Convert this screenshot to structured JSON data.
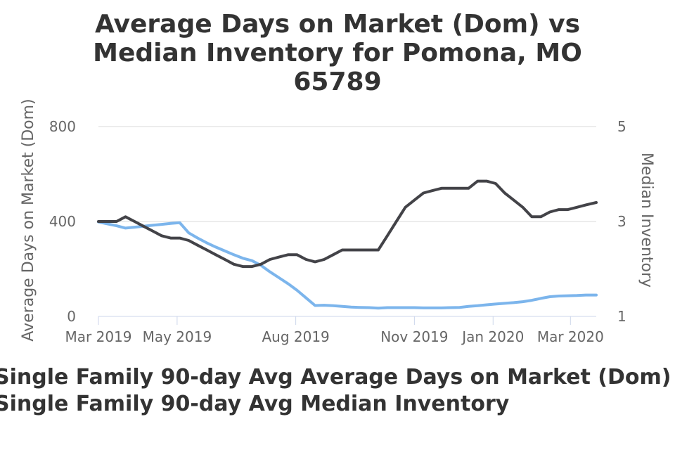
{
  "chart_data": {
    "type": "line",
    "title_lines": [
      "Average Days on Market (Dom) vs",
      "Median Inventory for Pomona, MO",
      "65789"
    ],
    "x_tick_labels": [
      "Mar 2019",
      "May 2019",
      "Aug 2019",
      "Nov 2019",
      "Jan 2020",
      "Mar 2020"
    ],
    "x_tick_dates": [
      "2019-03-01",
      "2019-05-01",
      "2019-08-01",
      "2019-11-01",
      "2020-01-01",
      "2020-03-01"
    ],
    "x_range": [
      "2019-03-01",
      "2020-03-21"
    ],
    "y_left": {
      "label": "Average Days on Market (Dom)",
      "min": 0,
      "max": 800,
      "ticks": [
        0,
        400,
        800
      ]
    },
    "y_right": {
      "label": "Median Inventory",
      "min": 1,
      "max": 5,
      "ticks": [
        1,
        3,
        5
      ]
    },
    "grid": true,
    "legend_position": "bottom",
    "series": [
      {
        "name": "Single Family 90-day Avg Average Days on Market (Dom)",
        "axis": "left",
        "color": "#7cb5ec",
        "points": [
          [
            "2019-03-01",
            398
          ],
          [
            "2019-03-08",
            390
          ],
          [
            "2019-03-15",
            382
          ],
          [
            "2019-03-22",
            372
          ],
          [
            "2019-03-29",
            376
          ],
          [
            "2019-04-05",
            380
          ],
          [
            "2019-04-12",
            384
          ],
          [
            "2019-04-19",
            388
          ],
          [
            "2019-04-26",
            392
          ],
          [
            "2019-05-03",
            395
          ],
          [
            "2019-05-10",
            352
          ],
          [
            "2019-05-17",
            330
          ],
          [
            "2019-05-24",
            310
          ],
          [
            "2019-05-31",
            292
          ],
          [
            "2019-06-07",
            276
          ],
          [
            "2019-06-14",
            260
          ],
          [
            "2019-06-21",
            245
          ],
          [
            "2019-06-28",
            235
          ],
          [
            "2019-07-05",
            215
          ],
          [
            "2019-07-12",
            188
          ],
          [
            "2019-07-19",
            163
          ],
          [
            "2019-07-26",
            138
          ],
          [
            "2019-08-02",
            110
          ],
          [
            "2019-08-09",
            78
          ],
          [
            "2019-08-16",
            46
          ],
          [
            "2019-08-23",
            47
          ],
          [
            "2019-08-30",
            45
          ],
          [
            "2019-09-06",
            42
          ],
          [
            "2019-09-13",
            39
          ],
          [
            "2019-09-20",
            38
          ],
          [
            "2019-09-27",
            37
          ],
          [
            "2019-10-04",
            35
          ],
          [
            "2019-10-11",
            37
          ],
          [
            "2019-10-18",
            37
          ],
          [
            "2019-10-25",
            37
          ],
          [
            "2019-11-01",
            37
          ],
          [
            "2019-11-08",
            36
          ],
          [
            "2019-11-15",
            36
          ],
          [
            "2019-11-22",
            36
          ],
          [
            "2019-11-29",
            37
          ],
          [
            "2019-12-06",
            38
          ],
          [
            "2019-12-13",
            42
          ],
          [
            "2019-12-20",
            45
          ],
          [
            "2019-12-27",
            49
          ],
          [
            "2020-01-03",
            52
          ],
          [
            "2020-01-10",
            55
          ],
          [
            "2020-01-17",
            58
          ],
          [
            "2020-01-24",
            62
          ],
          [
            "2020-01-31",
            68
          ],
          [
            "2020-02-07",
            76
          ],
          [
            "2020-02-14",
            83
          ],
          [
            "2020-02-21",
            86
          ],
          [
            "2020-02-28",
            87
          ],
          [
            "2020-03-06",
            88
          ],
          [
            "2020-03-13",
            90
          ],
          [
            "2020-03-21",
            90
          ]
        ]
      },
      {
        "name": "Single Family 90-day Avg Median Inventory",
        "axis": "right",
        "color": "#434348",
        "points": [
          [
            "2019-03-01",
            3.0
          ],
          [
            "2019-03-08",
            3.0
          ],
          [
            "2019-03-15",
            3.0
          ],
          [
            "2019-03-22",
            3.1
          ],
          [
            "2019-03-29",
            3.0
          ],
          [
            "2019-04-05",
            2.9
          ],
          [
            "2019-04-12",
            2.8
          ],
          [
            "2019-04-19",
            2.7
          ],
          [
            "2019-04-26",
            2.65
          ],
          [
            "2019-05-03",
            2.65
          ],
          [
            "2019-05-10",
            2.6
          ],
          [
            "2019-05-17",
            2.5
          ],
          [
            "2019-05-24",
            2.4
          ],
          [
            "2019-05-31",
            2.3
          ],
          [
            "2019-06-07",
            2.2
          ],
          [
            "2019-06-14",
            2.1
          ],
          [
            "2019-06-21",
            2.05
          ],
          [
            "2019-06-28",
            2.05
          ],
          [
            "2019-07-05",
            2.1
          ],
          [
            "2019-07-12",
            2.2
          ],
          [
            "2019-07-19",
            2.25
          ],
          [
            "2019-07-26",
            2.3
          ],
          [
            "2019-08-02",
            2.3
          ],
          [
            "2019-08-09",
            2.2
          ],
          [
            "2019-08-16",
            2.15
          ],
          [
            "2019-08-23",
            2.2
          ],
          [
            "2019-08-30",
            2.3
          ],
          [
            "2019-09-06",
            2.4
          ],
          [
            "2019-09-13",
            2.4
          ],
          [
            "2019-09-20",
            2.4
          ],
          [
            "2019-09-27",
            2.4
          ],
          [
            "2019-10-04",
            2.4
          ],
          [
            "2019-10-11",
            2.7
          ],
          [
            "2019-10-18",
            3.0
          ],
          [
            "2019-10-25",
            3.3
          ],
          [
            "2019-11-01",
            3.45
          ],
          [
            "2019-11-08",
            3.6
          ],
          [
            "2019-11-15",
            3.65
          ],
          [
            "2019-11-22",
            3.7
          ],
          [
            "2019-11-29",
            3.7
          ],
          [
            "2019-12-06",
            3.7
          ],
          [
            "2019-12-13",
            3.7
          ],
          [
            "2019-12-20",
            3.85
          ],
          [
            "2019-12-27",
            3.85
          ],
          [
            "2020-01-03",
            3.8
          ],
          [
            "2020-01-10",
            3.6
          ],
          [
            "2020-01-17",
            3.45
          ],
          [
            "2020-01-24",
            3.3
          ],
          [
            "2020-01-31",
            3.1
          ],
          [
            "2020-02-07",
            3.1
          ],
          [
            "2020-02-14",
            3.2
          ],
          [
            "2020-02-21",
            3.25
          ],
          [
            "2020-02-28",
            3.25
          ],
          [
            "2020-03-06",
            3.3
          ],
          [
            "2020-03-13",
            3.35
          ],
          [
            "2020-03-21",
            3.4
          ]
        ]
      }
    ]
  }
}
